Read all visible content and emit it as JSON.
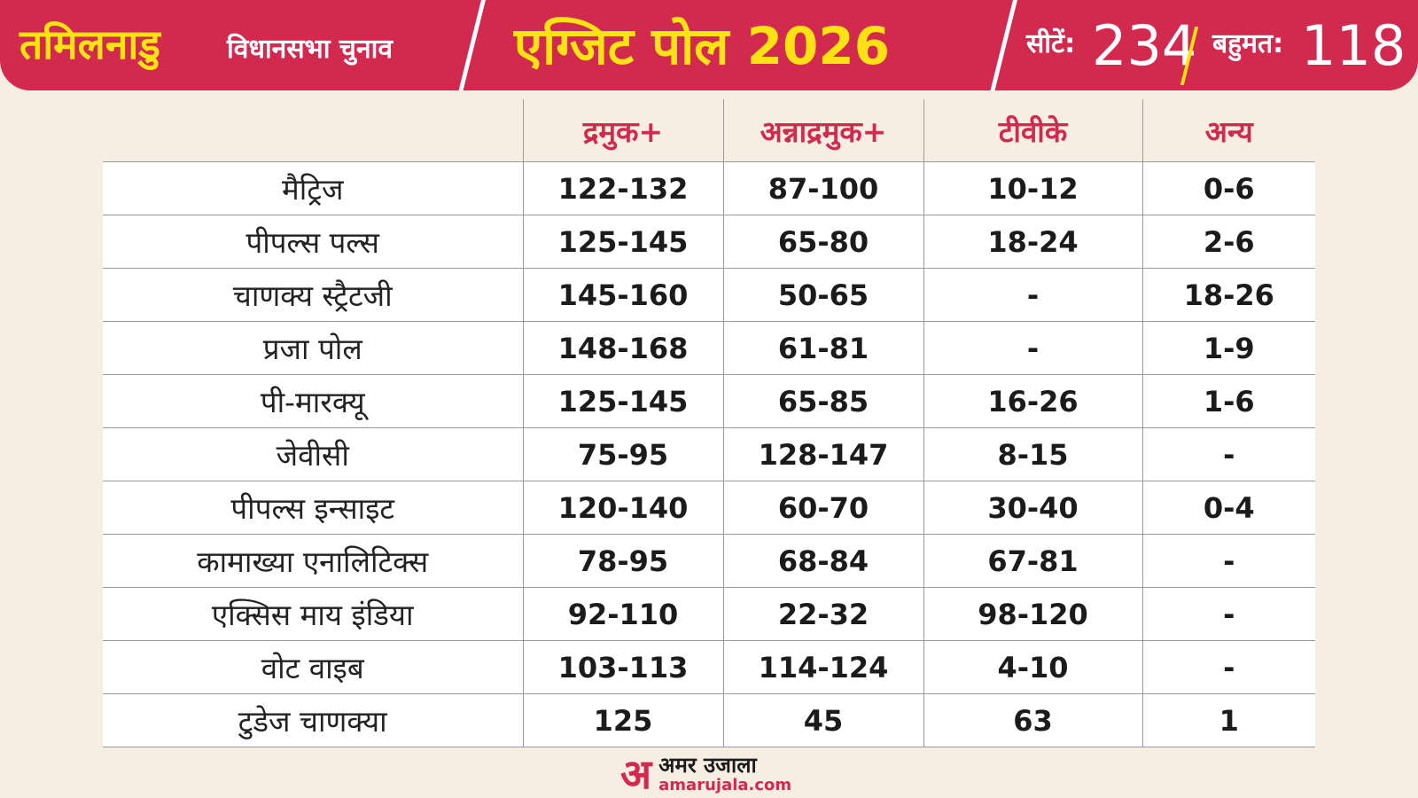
{
  "header": {
    "state_title": "तमिलनाडु",
    "state_subtitle": "विधानसभा चुनाव",
    "poll_title": "एग्जिट पोल 2026",
    "seats_label": "सीटें:",
    "seats_value": "234",
    "majority_label": "बहुमत:",
    "majority_value": "118"
  },
  "table": {
    "columns": [
      "द्रमुक+",
      "अन्नाद्रमुक+",
      "टीवीके",
      "अन्य"
    ],
    "rows": [
      {
        "agency": "मैट्रिज",
        "values": [
          "122-132",
          "87-100",
          "10-12",
          "0-6"
        ]
      },
      {
        "agency": "पीपल्स पल्स",
        "values": [
          "125-145",
          "65-80",
          "18-24",
          "2-6"
        ]
      },
      {
        "agency": "चाणक्य स्ट्रैटजी",
        "values": [
          "145-160",
          "50-65",
          "-",
          "18-26"
        ]
      },
      {
        "agency": "प्रजा पोल",
        "values": [
          "148-168",
          "61-81",
          "-",
          "1-9"
        ]
      },
      {
        "agency": "पी-मारक्यू",
        "values": [
          "125-145",
          "65-85",
          "16-26",
          "1-6"
        ]
      },
      {
        "agency": "जेवीसी",
        "values": [
          "75-95",
          "128-147",
          "8-15",
          "-"
        ]
      },
      {
        "agency": "पीपल्स इन्साइट",
        "values": [
          "120-140",
          "60-70",
          "30-40",
          "0-4"
        ]
      },
      {
        "agency": "कामाख्या एनालिटिक्स",
        "values": [
          "78-95",
          "68-84",
          "67-81",
          "-"
        ]
      },
      {
        "agency": "एक्सिस माय इंडिया",
        "values": [
          "92-110",
          "22-32",
          "98-120",
          "-"
        ]
      },
      {
        "agency": "वोट वाइब",
        "values": [
          "103-113",
          "114-124",
          "4-10",
          "-"
        ]
      },
      {
        "agency": "टुडेज चाणक्या",
        "values": [
          "125",
          "45",
          "63",
          "1"
        ]
      }
    ]
  },
  "footer": {
    "logo_mark": "अ",
    "logo_hindi": "अमर उजाला",
    "logo_url": "amarujala.com"
  },
  "colors": {
    "accent": "#d22a4f",
    "title_yellow": "#ffe213",
    "background": "#f7eee3"
  }
}
